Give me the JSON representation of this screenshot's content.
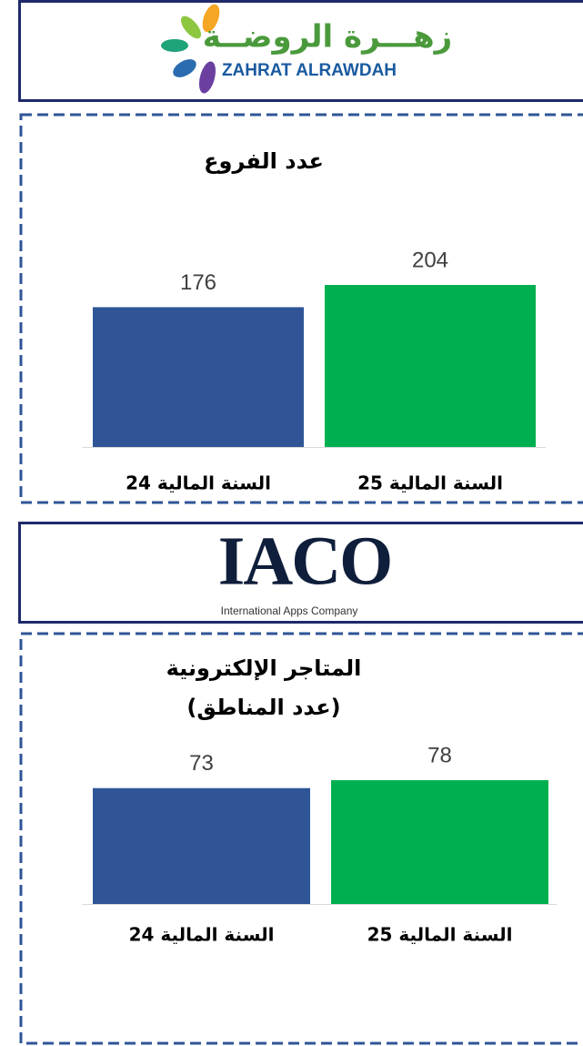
{
  "logos": [
    {
      "name": "زهـــرة الروضــة",
      "subname": "ZAHRAT ALRAWDAH"
    },
    {
      "name": "IACO",
      "subname": "International Apps Company"
    }
  ],
  "chart_data": [
    {
      "type": "bar",
      "title": "عدد الفروع",
      "categories": [
        "السنة المالية 24",
        "السنة المالية 25"
      ],
      "values": [
        176,
        204
      ],
      "colors": [
        "#2f5597",
        "#00b050"
      ]
    },
    {
      "type": "bar",
      "title": "المتاجر الإلكترونية",
      "subtitle": "(عدد المناطق)",
      "categories": [
        "السنة المالية 24",
        "السنة المالية 25"
      ],
      "values": [
        73,
        78
      ],
      "colors": [
        "#2f5597",
        "#00b050"
      ]
    }
  ]
}
